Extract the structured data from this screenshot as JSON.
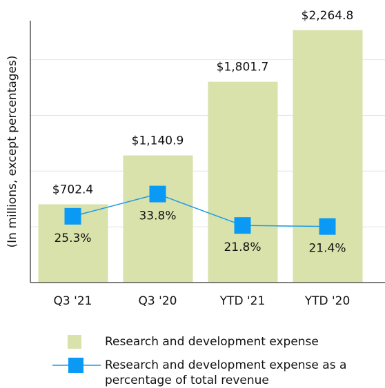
{
  "chart_data": {
    "type": "bar_line",
    "y_axis_label": "(In millions, except percentages)",
    "categories": [
      "Q3 '21",
      "Q3 '20",
      "YTD '21",
      "YTD '20"
    ],
    "series": [
      {
        "name": "Research and development expense",
        "type": "bar",
        "color": "#d8e2aa",
        "values": [
          702.4,
          1140.9,
          1801.7,
          2264.8
        ],
        "value_labels": [
          "$702.4",
          "$1,140.9",
          "$1,801.7",
          "$2,264.8"
        ]
      },
      {
        "name": "Research and development expense as a percentage of total revenue",
        "type": "line",
        "axis": "y2",
        "color": "#1a9be8",
        "marker_color": "#0a9af5",
        "values": [
          25.3,
          33.8,
          21.8,
          21.4
        ],
        "value_labels": [
          "25.3%",
          "33.8%",
          "21.8%",
          "21.4%"
        ]
      }
    ],
    "ylim": [
      0,
      2350
    ],
    "yticks": [
      0,
      500,
      1000,
      1500,
      2000
    ],
    "grid": true,
    "y2lim": [
      0,
      100
    ]
  }
}
